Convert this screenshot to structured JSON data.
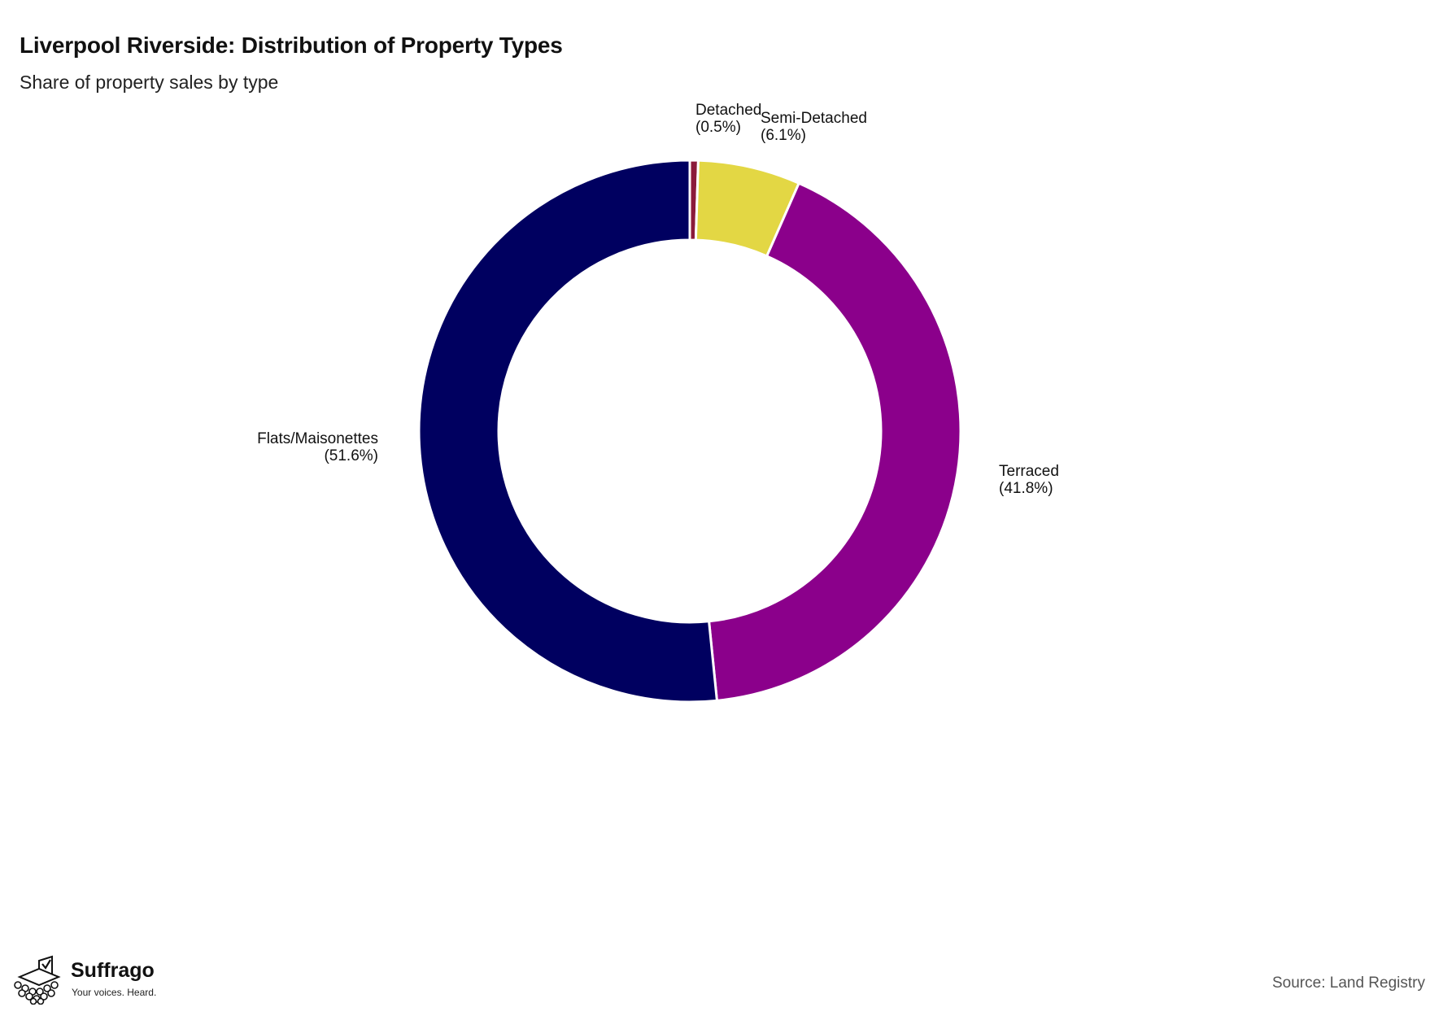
{
  "header": {
    "title": "Liverpool Riverside: Distribution of Property Types",
    "subtitle": "Share of property sales by type"
  },
  "footer": {
    "source": "Source: Land Registry",
    "brand_name": "Suffrago",
    "brand_tagline": "Your voices. Heard."
  },
  "chart_data": {
    "type": "pie",
    "title": "Liverpool Riverside: Distribution of Property Types",
    "subtitle": "Share of property sales by type",
    "donut": true,
    "start": "12 o'clock, clockwise",
    "categories": [
      "Detached",
      "Semi-Detached",
      "Terraced",
      "Flats/Maisonettes"
    ],
    "values": [
      0.5,
      6.1,
      41.8,
      51.6
    ],
    "labels": [
      "(0.5%)",
      "(6.1%)",
      "(41.8%)",
      "(51.6%)"
    ],
    "colors": [
      "#8b1a3a",
      "#e3d744",
      "#8b008b",
      "#000060"
    ]
  }
}
